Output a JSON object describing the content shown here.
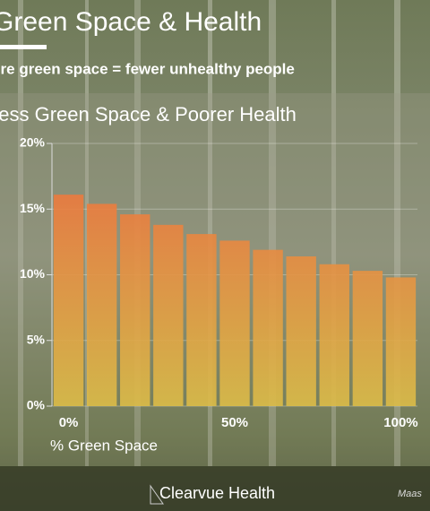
{
  "chart_data": {
    "type": "bar",
    "title": "Green Space & Health",
    "subtitle": "More green space = fewer unhealthy people",
    "chart_title": "Less Green Space & Poorer Health",
    "x_label": "% Green Space",
    "categories": [
      "0%",
      null,
      null,
      null,
      null,
      "50%",
      null,
      null,
      null,
      null,
      "100%"
    ],
    "values": [
      16.1,
      15.4,
      14.6,
      13.8,
      13.1,
      12.6,
      11.9,
      11.4,
      10.8,
      10.3,
      9.8
    ],
    "colors": [
      "#f06a3c",
      "#dcbc48"
    ],
    "ylim": [
      0,
      20
    ],
    "yticks": [
      {
        "value": 0,
        "label": "0%"
      },
      {
        "value": 5,
        "label": "5%"
      },
      {
        "value": 10,
        "label": "10%"
      },
      {
        "value": 15,
        "label": "15%"
      },
      {
        "value": 20,
        "label": "20%"
      }
    ],
    "grid": true,
    "brand": "Clearvue Health",
    "source": "Maas"
  }
}
